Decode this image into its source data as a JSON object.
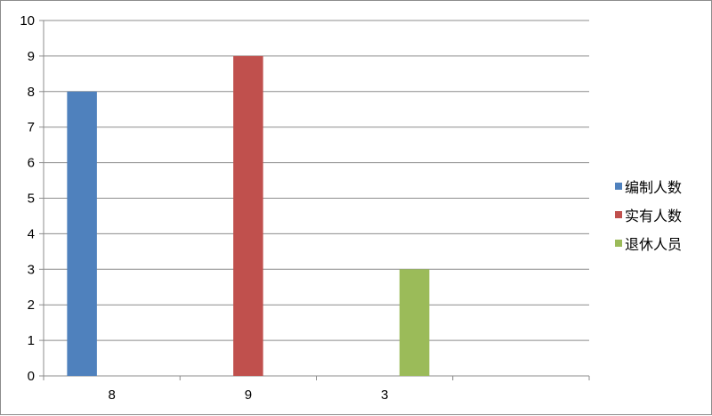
{
  "chart_data": {
    "type": "bar",
    "categories": [
      "8",
      "9",
      "3",
      ""
    ],
    "series": [
      {
        "name": "编制人数",
        "values": [
          8,
          0,
          0,
          0
        ],
        "color": "#4f81bd"
      },
      {
        "name": "实有人数",
        "values": [
          0,
          9,
          0,
          0
        ],
        "color": "#c0504d"
      },
      {
        "name": "退休人员",
        "values": [
          0,
          0,
          3,
          0
        ],
        "color": "#9bbb59"
      }
    ],
    "ylim": [
      0,
      10
    ],
    "yticks": [
      "0",
      "1",
      "2",
      "3",
      "4",
      "5",
      "6",
      "7",
      "8",
      "9",
      "10"
    ],
    "grid": true,
    "legend_position": "right",
    "title": "",
    "xlabel": "",
    "ylabel": ""
  }
}
